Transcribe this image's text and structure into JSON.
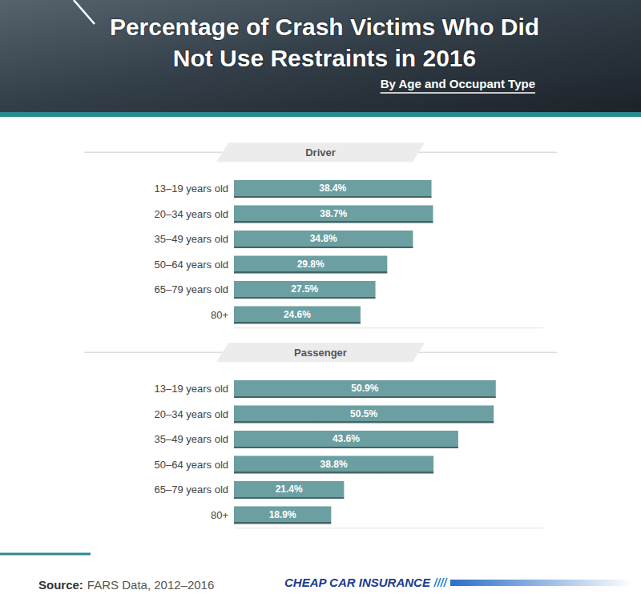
{
  "title": "Percentage of Crash Victims Who Did Not Use Restraints in 2016",
  "subtitle": "By Age and Occupant Type",
  "source": {
    "label": "Source:",
    "text": "FARS Data, 2012–2016"
  },
  "brand": "CHEAP CAR INSURANCE",
  "chart_data": [
    {
      "type": "bar",
      "title": "Driver",
      "orientation": "horizontal",
      "categories": [
        "13–19 years old",
        "20–34 years old",
        "35–49 years old",
        "50–64 years old",
        "65–79 years old",
        "80+"
      ],
      "values": [
        38.4,
        38.7,
        34.8,
        29.8,
        27.5,
        24.6
      ],
      "value_labels": [
        "38.4%",
        "38.7%",
        "34.8%",
        "29.8%",
        "27.5%",
        "24.6%"
      ],
      "color": "#6c9fa1",
      "xlim": [
        0,
        60
      ],
      "xticks": [],
      "data_labels": true,
      "tick_labels": "y",
      "grid": false
    },
    {
      "type": "bar",
      "title": "Passenger",
      "orientation": "horizontal",
      "categories": [
        "13–19 years old",
        "20–34 years old",
        "35–49 years old",
        "50–64 years old",
        "65–79 years old",
        "80+"
      ],
      "values": [
        50.9,
        50.5,
        43.6,
        38.8,
        21.4,
        18.9
      ],
      "value_labels": [
        "50.9%",
        "50.5%",
        "43.6%",
        "38.8%",
        "21.4%",
        "18.9%"
      ],
      "color": "#6c9fa1",
      "xlim": [
        0,
        60
      ],
      "xticks": [],
      "data_labels": true,
      "tick_labels": "y",
      "grid": false
    }
  ]
}
